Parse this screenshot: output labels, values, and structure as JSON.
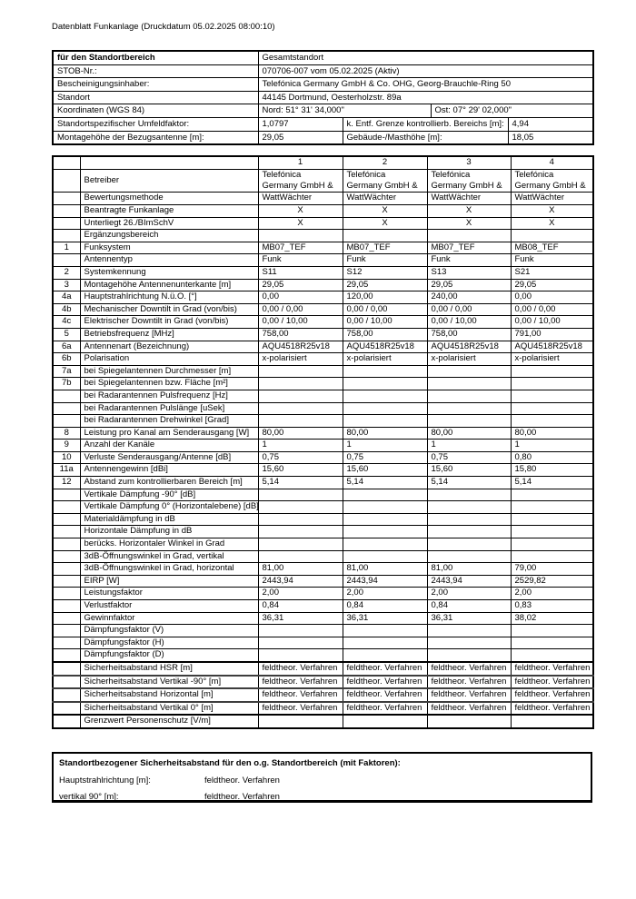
{
  "header": {
    "title": "Datenblatt Funkanlage (Druckdatum 05.02.2025 08:00:10)"
  },
  "colors": {
    "text": "#000000",
    "border": "#000000",
    "background": "#ffffff"
  },
  "site_table": {
    "rows": [
      {
        "cells": [
          {
            "text": "für den Standortbereich",
            "bold": true,
            "span": 1
          },
          {
            "text": "Gesamtstandort",
            "span": 4
          }
        ]
      },
      {
        "cells": [
          {
            "text": "STOB-Nr.:",
            "span": 1
          },
          {
            "text": "070706-007 vom 05.02.2025 (Aktiv)",
            "span": 4
          }
        ]
      },
      {
        "cells": [
          {
            "text": "Bescheinigungsinhaber:",
            "span": 1
          },
          {
            "text": "Telefónica Germany GmbH & Co. OHG, Georg-Brauchle-Ring 50",
            "span": 4
          }
        ]
      },
      {
        "cells": [
          {
            "text": "Standort",
            "span": 1
          },
          {
            "text": "44145 Dortmund, Oesterholzstr. 89a",
            "span": 4
          }
        ]
      },
      {
        "cells": [
          {
            "text": "Koordinaten (WGS 84)",
            "span": 1
          },
          {
            "text": "Nord: 51° 31' 34,000\"",
            "span": 2
          },
          {
            "text": "Ost: 07° 29' 02,000\"",
            "span": 2
          }
        ]
      },
      {
        "cells": [
          {
            "text": "Standortspezifischer Umfeldfaktor:",
            "span": 1
          },
          {
            "text": "1,0797",
            "span": 1
          },
          {
            "text": "k. Entf. Grenze kontrollierb. Bereichs [m]:",
            "span": 2
          },
          {
            "text": "4,94",
            "span": 1
          }
        ]
      },
      {
        "cells": [
          {
            "text": "Montagehöhe der Bezugsantenne [m]:",
            "span": 1
          },
          {
            "text": "29,05",
            "span": 1
          },
          {
            "text": "Gebäude-/Masthöhe [m]:",
            "span": 2
          },
          {
            "text": "18,05",
            "span": 1
          }
        ]
      }
    ]
  },
  "antenna_table": {
    "column_headers": [
      "1",
      "2",
      "3",
      "4"
    ],
    "rows": [
      {
        "num": "",
        "label": "Betreiber",
        "values": [
          "Telefónica\nGermany GmbH &",
          "Telefónica\nGermany GmbH &",
          "Telefónica\nGermany GmbH &",
          "Telefónica\nGermany GmbH &"
        ],
        "multiline": true
      },
      {
        "num": "",
        "label": "Bewertungsmethode",
        "values": [
          "WattWächter",
          "WattWächter",
          "WattWächter",
          "WattWächter"
        ]
      },
      {
        "num": "",
        "label": "Beantragte Funkanlage",
        "values": [
          "X",
          "X",
          "X",
          "X"
        ],
        "center": true
      },
      {
        "num": "",
        "label": "Unterliegt 26./BImSchV",
        "values": [
          "X",
          "X",
          "X",
          "X"
        ],
        "center": true
      },
      {
        "num": "",
        "label": "Ergänzungsbereich",
        "values": [
          "",
          "",
          "",
          ""
        ]
      },
      {
        "num": "1",
        "label": "Funksystem",
        "values": [
          "MB07_TEF",
          "MB07_TEF",
          "MB07_TEF",
          "MB08_TEF"
        ]
      },
      {
        "num": "",
        "label": "Antennentyp",
        "values": [
          "Funk",
          "Funk",
          "Funk",
          "Funk"
        ]
      },
      {
        "num": "2",
        "label": "Systemkennung",
        "values": [
          "S11",
          "S12",
          "S13",
          "S21"
        ]
      },
      {
        "num": "3",
        "label": "Montagehöhe Antennenunterkante [m]",
        "values": [
          "29,05",
          "29,05",
          "29,05",
          "29,05"
        ]
      },
      {
        "num": "4a",
        "label": "Hauptstrahlrichtung N.ü.O. [°]",
        "values": [
          "0,00",
          "120,00",
          "240,00",
          "0,00"
        ]
      },
      {
        "num": "4b",
        "label": "Mechanischer Downtilt in Grad (von/bis)",
        "values": [
          "0,00 / 0,00",
          "0,00 / 0,00",
          "0,00 / 0,00",
          "0,00 / 0,00"
        ]
      },
      {
        "num": "4c",
        "label": "Elektrischer Downtilt in Grad (von/bis)",
        "values": [
          "0,00 / 10,00",
          "0,00 / 10,00",
          "0,00 / 10,00",
          "0,00 / 10,00"
        ]
      },
      {
        "num": "5",
        "label": "Betriebsfrequenz [MHz]",
        "values": [
          "758,00",
          "758,00",
          "758,00",
          "791,00"
        ]
      },
      {
        "num": "6a",
        "label": "Antennenart (Bezeichnung)",
        "values": [
          "AQU4518R25v18",
          "AQU4518R25v18",
          "AQU4518R25v18",
          "AQU4518R25v18"
        ]
      },
      {
        "num": "6b",
        "label": "Polarisation",
        "values": [
          "x-polarisiert",
          "x-polarisiert",
          "x-polarisiert",
          "x-polarisiert"
        ]
      },
      {
        "num": "7a",
        "label": "bei Spiegelantennen Durchmesser [m]",
        "values": [
          "",
          "",
          "",
          ""
        ]
      },
      {
        "num": "7b",
        "label": "bei Spiegelantennen bzw. Fläche [m²]",
        "values": [
          "",
          "",
          "",
          ""
        ]
      },
      {
        "num": "",
        "label": "bei Radarantennen Pulsfrequenz [Hz]",
        "values": [
          "",
          "",
          "",
          ""
        ]
      },
      {
        "num": "",
        "label": "bei Radarantennen Pulslänge [uSek]",
        "values": [
          "",
          "",
          "",
          ""
        ]
      },
      {
        "num": "",
        "label": "bei Radarantennen Drehwinkel [Grad]",
        "values": [
          "",
          "",
          "",
          ""
        ]
      },
      {
        "num": "8",
        "label": "Leistung pro Kanal am Senderausgang  [W]",
        "values": [
          "80,00",
          "80,00",
          "80,00",
          "80,00"
        ]
      },
      {
        "num": "9",
        "label": "Anzahl der Kanäle",
        "values": [
          "1",
          "1",
          "1",
          "1"
        ]
      },
      {
        "num": "10",
        "label": "Verluste Senderausgang/Antenne [dB]",
        "values": [
          "0,75",
          "0,75",
          "0,75",
          "0,80"
        ]
      },
      {
        "num": "11a",
        "label": "Antennengewinn [dBi]",
        "values": [
          "15,60",
          "15,60",
          "15,60",
          "15,80"
        ]
      },
      {
        "num": "12",
        "label": "Abstand zum kontrollierbaren Bereich [m]",
        "values": [
          "5,14",
          "5,14",
          "5,14",
          "5,14"
        ]
      },
      {
        "num": "",
        "label": "Vertikale Dämpfung -90° [dB]",
        "values": [
          "",
          "",
          "",
          ""
        ]
      },
      {
        "num": "",
        "label": "Vertikale Dämpfung 0° (Horizontalebene) [dB]",
        "values": [
          "",
          "",
          "",
          ""
        ]
      },
      {
        "num": "",
        "label": "Materialdämpfung in dB",
        "values": [
          "",
          "",
          "",
          ""
        ]
      },
      {
        "num": "",
        "label": "Horizontale Dämpfung in dB",
        "values": [
          "",
          "",
          "",
          ""
        ]
      },
      {
        "num": "",
        "label": "berücks. Horizontaler Winkel in Grad",
        "values": [
          "",
          "",
          "",
          ""
        ]
      },
      {
        "num": "",
        "label": "3dB-Öffnungswinkel in Grad, vertikal",
        "values": [
          "",
          "",
          "",
          ""
        ]
      },
      {
        "num": "",
        "label": "3dB-Öffnungswinkel in Grad, horizontal",
        "values": [
          "81,00",
          "81,00",
          "81,00",
          "79,00"
        ]
      },
      {
        "num": "",
        "label": "EIRP [W]",
        "values": [
          "2443,94",
          "2443,94",
          "2443,94",
          "2529,82"
        ]
      },
      {
        "num": "",
        "label": "Leistungsfaktor",
        "values": [
          "2,00",
          "2,00",
          "2,00",
          "2,00"
        ]
      },
      {
        "num": "",
        "label": "Verlustfaktor",
        "values": [
          "0,84",
          "0,84",
          "0,84",
          "0,83"
        ]
      },
      {
        "num": "",
        "label": "Gewinnfaktor",
        "values": [
          "36,31",
          "36,31",
          "36,31",
          "38,02"
        ]
      },
      {
        "num": "",
        "label": "Dämpfungsfaktor (V)",
        "values": [
          "",
          "",
          "",
          ""
        ]
      },
      {
        "num": "",
        "label": "Dämpfungsfaktor (H)",
        "values": [
          "",
          "",
          "",
          ""
        ]
      },
      {
        "num": "",
        "label": "Dämpfungsfaktor (D)",
        "values": [
          "",
          "",
          "",
          ""
        ]
      },
      {
        "num": "",
        "label": "Sicherheitsabstand HSR [m]",
        "values": [
          "feldtheor. Verfahren",
          "feldtheor. Verfahren",
          "feldtheor. Verfahren",
          "feldtheor. Verfahren"
        ],
        "thick_top": true
      },
      {
        "num": "",
        "label": "Sicherheitsabstand Vertikal -90° [m]",
        "values": [
          "feldtheor. Verfahren",
          "feldtheor. Verfahren",
          "feldtheor. Verfahren",
          "feldtheor. Verfahren"
        ],
        "sep": true
      },
      {
        "num": "",
        "label": "Sicherheitsabstand Horizontal [m]",
        "values": [
          "feldtheor. Verfahren",
          "feldtheor. Verfahren",
          "feldtheor. Verfahren",
          "feldtheor. Verfahren"
        ],
        "sep": true
      },
      {
        "num": "",
        "label": "Sicherheitsabstand Vertikal 0° [m]",
        "values": [
          "feldtheor. Verfahren",
          "feldtheor. Verfahren",
          "feldtheor. Verfahren",
          "feldtheor. Verfahren"
        ],
        "sep": true,
        "thick_bottom": true
      },
      {
        "num": "",
        "label": "Grenzwert Personenschutz [V/m]",
        "values": [
          "",
          "",
          "",
          ""
        ]
      }
    ]
  },
  "footer_box": {
    "title": "Standortbezogener Sicherheitsabstand für den o.g. Standortbereich (mit Faktoren):",
    "rows": [
      {
        "label": "Hauptstrahlrichtung [m]:",
        "value": "feldtheor. Verfahren"
      },
      {
        "label": "vertikal 90° [m]:",
        "value": "feldtheor. Verfahren"
      }
    ]
  }
}
